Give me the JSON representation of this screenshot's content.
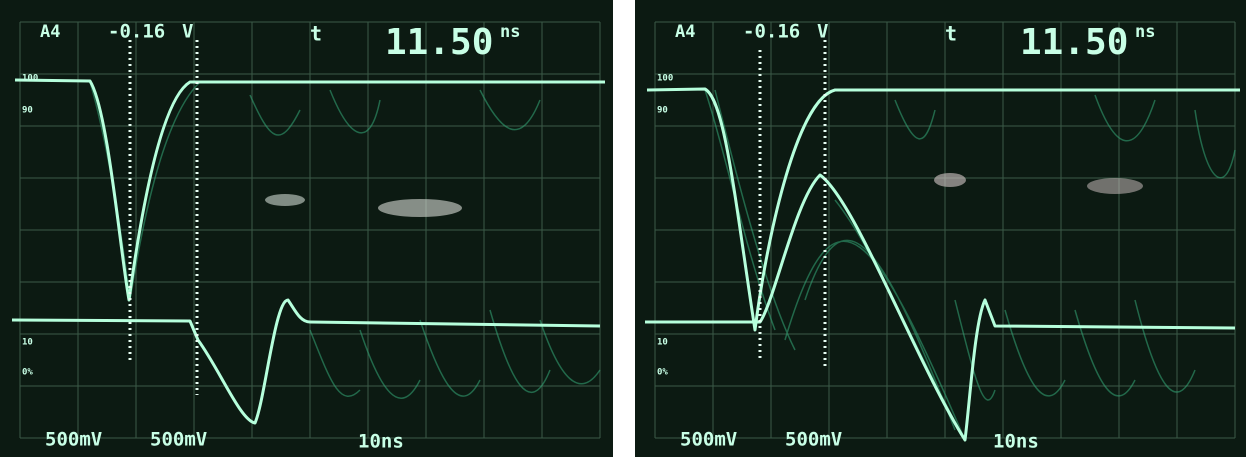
{
  "panels": [
    {
      "channel": "A4",
      "cursor_value": "-0.16",
      "cursor_unit": "V",
      "trigger": "t",
      "time": "11.50",
      "time_unit": "ns",
      "ch1_scale": "500mV",
      "ch2_scale": "500mV",
      "timebase": "10ns",
      "graticule": [
        "100",
        "90",
        "10",
        "0%"
      ]
    },
    {
      "channel": "A4",
      "cursor_value": "-0.16",
      "cursor_unit": "V",
      "trigger": "t",
      "time": "11.50",
      "time_unit": "ns",
      "ch1_scale": "500mV",
      "ch2_scale": "500mV",
      "timebase": "10ns",
      "graticule": [
        "100",
        "90",
        "10",
        "0%"
      ]
    }
  ]
}
